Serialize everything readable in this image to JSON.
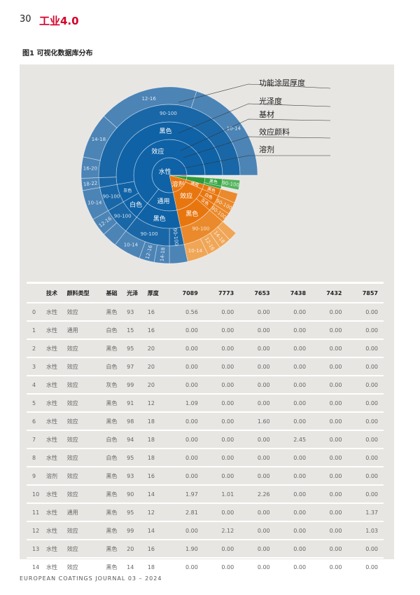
{
  "header": {
    "page_number": "30",
    "section": "工业4.0"
  },
  "figure": {
    "caption": "图1 可视化数据库分布"
  },
  "footer": "EUROPEAN COATINGS JOURNAL 03 – 2024",
  "chart_data": {
    "type": "sunburst",
    "levels": [
      "溶剂",
      "效应颜料",
      "基材",
      "光泽度",
      "功能涂层厚度"
    ],
    "colors": {
      "blue": "#0f62a6",
      "orange": "#e8760f",
      "green": "#2e9b3a",
      "red": "#d9453a"
    },
    "root": [
      {
        "name": "",
        "value": 4,
        "color": "red"
      },
      {
        "name": "",
        "value": 11,
        "color": "green",
        "children": [
          {
            "name": "",
            "value": 11,
            "children": [
              {
                "name": "黑色",
                "value": 8,
                "children": [
                  {
                    "name": "90-100",
                    "value": 8
                  }
                ]
              },
              {
                "name": "",
                "value": 3
              }
            ]
          }
        ]
      },
      {
        "name": "溶剂",
        "value": 63,
        "color": "orange",
        "children": [
          {
            "name": "通用",
            "value": 8,
            "children": [
              {
                "name": "黑色",
                "value": 8,
                "children": [
                  {
                    "name": "",
                    "value": 8
                  }
                ]
              }
            ]
          },
          {
            "name": "效应",
            "value": 55,
            "children": [
              {
                "name": "白色",
                "value": 10,
                "children": [
                  {
                    "name": "90-100",
                    "value": 10
                  }
                ]
              },
              {
                "name": "灰色",
                "value": 8,
                "children": [
                  {
                    "name": "90-100",
                    "value": 8
                  }
                ]
              },
              {
                "name": "黑色",
                "value": 37,
                "children": [
                  {
                    "name": "90-100",
                    "value": 37,
                    "children": [
                      {
                        "name": "16-20",
                        "value": 6
                      },
                      {
                        "name": "14-18",
                        "value": 8
                      },
                      {
                        "name": "12-16",
                        "value": 9
                      },
                      {
                        "name": "10-14",
                        "value": 14
                      }
                    ]
                  }
                ]
              }
            ]
          }
        ]
      },
      {
        "name": "水性",
        "value": 282,
        "color": "blue",
        "children": [
          {
            "name": "通用",
            "value": 50,
            "children": [
              {
                "name": "黑色",
                "value": 50,
                "children": [
                  {
                    "name": "90-100",
                    "value": 12,
                    "children": [
                      {
                        "name": "",
                        "value": 12
                      }
                    ]
                  },
                  {
                    "name": "90-100",
                    "value": 38,
                    "children": [
                      {
                        "name": "14-18",
                        "value": 10
                      },
                      {
                        "name": "12-16",
                        "value": 10
                      },
                      {
                        "name": "10-14",
                        "value": 18
                      }
                    ]
                  }
                ]
              }
            ]
          },
          {
            "name": "效应",
            "value": 232,
            "children": [
              {
                "name": "白色",
                "value": 22,
                "children": [
                  {
                    "name": "90-100",
                    "value": 22,
                    "children": [
                      {
                        "name": "",
                        "value": 10
                      },
                      {
                        "name": "12-16",
                        "value": 12
                      }
                    ]
                  }
                ]
              },
              {
                "name": "灰色",
                "value": 20,
                "children": [
                  {
                    "name": "90-100",
                    "value": 20,
                    "children": [
                      {
                        "name": "10-14",
                        "value": 20
                      }
                    ]
                  }
                ]
              },
              {
                "name": "黑色",
                "value": 190,
                "children": [
                  {
                    "name": "",
                    "value": 8,
                    "children": [
                      {
                        "name": "18-22",
                        "value": 8
                      }
                    ]
                  },
                  {
                    "name": "90-100",
                    "value": 182,
                    "children": [
                      {
                        "name": "16-20",
                        "value": 14
                      },
                      {
                        "name": "14-18",
                        "value": 30
                      },
                      {
                        "name": "12-16",
                        "value": 66
                      },
                      {
                        "name": "10-14",
                        "value": 72
                      }
                    ]
                  }
                ]
              }
            ]
          }
        ]
      }
    ],
    "legend": [
      "功能涂层厚度",
      "光泽度",
      "基材",
      "效应颜料",
      "溶剂"
    ]
  },
  "table": {
    "columns": [
      "",
      "技术",
      "颜料类型",
      "基础",
      "光泽",
      "厚度",
      "7089",
      "7773",
      "7653",
      "7438",
      "7432",
      "7857"
    ],
    "rows": [
      [
        "0",
        "水性",
        "效应",
        "黑色",
        "93",
        "16",
        "0.56",
        "0.00",
        "0.00",
        "0.00",
        "0.00",
        "0.00"
      ],
      [
        "1",
        "水性",
        "通用",
        "白色",
        "15",
        "16",
        "0.00",
        "0.00",
        "0.00",
        "0.00",
        "0.00",
        "0.00"
      ],
      [
        "2",
        "水性",
        "效应",
        "黑色",
        "95",
        "20",
        "0.00",
        "0.00",
        "0.00",
        "0.00",
        "0.00",
        "0.00"
      ],
      [
        "3",
        "水性",
        "效应",
        "白色",
        "97",
        "20",
        "0.00",
        "0.00",
        "0.00",
        "0.00",
        "0.00",
        "0.00"
      ],
      [
        "4",
        "水性",
        "效应",
        "灰色",
        "99",
        "20",
        "0.00",
        "0.00",
        "0.00",
        "0.00",
        "0.00",
        "0.00"
      ],
      [
        "5",
        "水性",
        "效应",
        "黑色",
        "91",
        "12",
        "1.09",
        "0.00",
        "0.00",
        "0.00",
        "0.00",
        "0.00"
      ],
      [
        "6",
        "水性",
        "效应",
        "黑色",
        "98",
        "18",
        "0.00",
        "0.00",
        "1.60",
        "0.00",
        "0.00",
        "0.00"
      ],
      [
        "7",
        "水性",
        "效应",
        "白色",
        "94",
        "18",
        "0.00",
        "0.00",
        "0.00",
        "2.45",
        "0.00",
        "0.00"
      ],
      [
        "8",
        "水性",
        "效应",
        "白色",
        "95",
        "18",
        "0.00",
        "0.00",
        "0.00",
        "0.00",
        "0.00",
        "0.00"
      ],
      [
        "9",
        "溶剂",
        "效应",
        "黑色",
        "93",
        "16",
        "0.00",
        "0.00",
        "0.00",
        "0.00",
        "0.00",
        "0.00"
      ],
      [
        "10",
        "水性",
        "效应",
        "黑色",
        "90",
        "14",
        "1.97",
        "1.01",
        "2.26",
        "0.00",
        "0.00",
        "0.00"
      ],
      [
        "11",
        "水性",
        "通用",
        "黑色",
        "95",
        "12",
        "2.81",
        "0.00",
        "0.00",
        "0.00",
        "0.00",
        "1.37"
      ],
      [
        "12",
        "水性",
        "效应",
        "黑色",
        "99",
        "14",
        "0.00",
        "2.12",
        "0.00",
        "0.00",
        "0.00",
        "1.03"
      ],
      [
        "13",
        "水性",
        "效应",
        "黑色",
        "20",
        "16",
        "1.90",
        "0.00",
        "0.00",
        "0.00",
        "0.00",
        "0.00"
      ],
      [
        "14",
        "水性",
        "效应",
        "黑色",
        "14",
        "18",
        "0.00",
        "0.00",
        "0.00",
        "0.00",
        "0.00",
        "0.00"
      ]
    ]
  }
}
